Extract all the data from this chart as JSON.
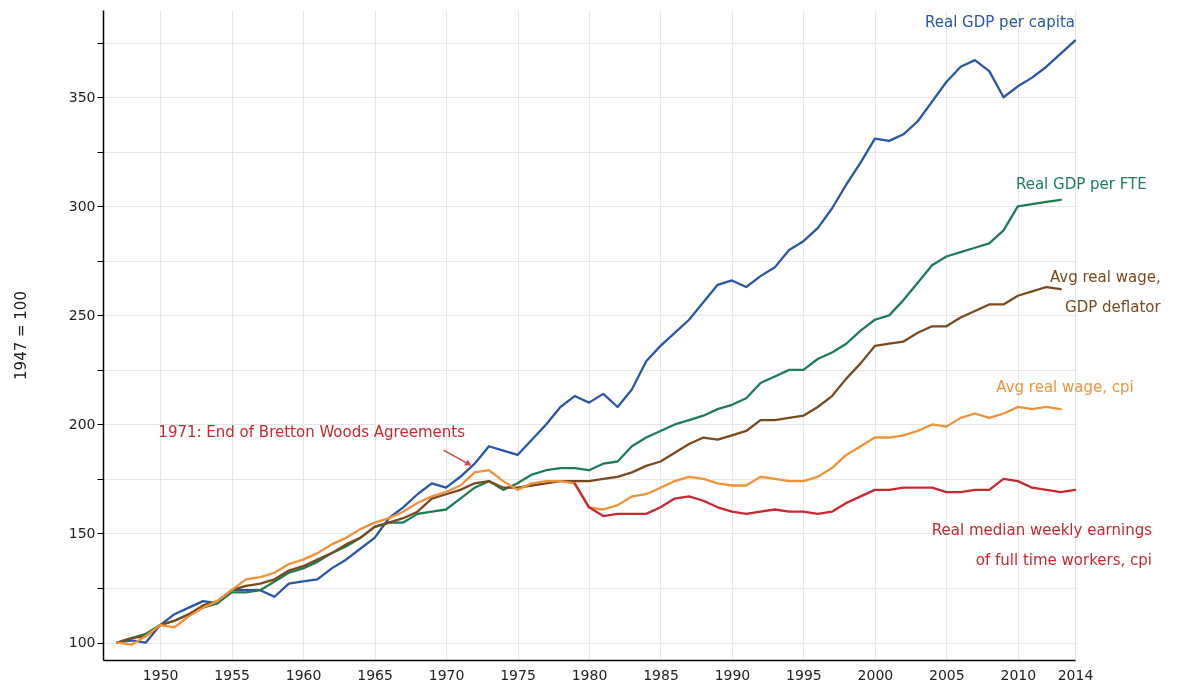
{
  "chart_data": {
    "type": "line",
    "ylabel": "1947 = 100",
    "xlim": [
      1946,
      2014
    ],
    "ylim": [
      92,
      390
    ],
    "xticks": [
      1950,
      1955,
      1960,
      1965,
      1970,
      1975,
      1980,
      1985,
      1990,
      1995,
      2000,
      2005,
      2010,
      2014
    ],
    "yticks": [
      100,
      {
        "value": 125,
        "label": null
      },
      150,
      {
        "value": 175,
        "label": null
      },
      200,
      {
        "value": 225,
        "label": null
      },
      250,
      {
        "value": 275,
        "label": null
      },
      300,
      {
        "value": 325,
        "label": null
      },
      350,
      {
        "value": 375,
        "label": null
      }
    ],
    "grid": true,
    "annotations": [
      {
        "text": "1971: End of Bretton Woods Agreements",
        "x": 1972,
        "y": 180
      }
    ],
    "series": [
      {
        "name": "Real GDP per capita",
        "color": "#2a56a6",
        "x": [
          1947,
          1948,
          1949,
          1950,
          1951,
          1952,
          1953,
          1954,
          1955,
          1956,
          1957,
          1958,
          1959,
          1960,
          1961,
          1962,
          1963,
          1964,
          1965,
          1966,
          1967,
          1968,
          1969,
          1970,
          1971,
          1972,
          1973,
          1974,
          1975,
          1976,
          1977,
          1978,
          1979,
          1980,
          1981,
          1982,
          1983,
          1984,
          1985,
          1986,
          1987,
          1988,
          1989,
          1990,
          1991,
          1992,
          1993,
          1994,
          1995,
          1996,
          1997,
          1998,
          1999,
          2000,
          2001,
          2002,
          2003,
          2004,
          2005,
          2006,
          2007,
          2008,
          2009,
          2010,
          2011,
          2012,
          2013,
          2014
        ],
        "values": [
          100,
          101,
          100,
          108,
          113,
          116,
          119,
          118,
          124,
          124,
          124,
          121,
          127,
          128,
          129,
          134,
          138,
          143,
          148,
          157,
          162,
          168,
          173,
          171,
          176,
          182,
          190,
          188,
          186,
          193,
          200,
          208,
          213,
          210,
          214,
          208,
          216,
          229,
          236,
          242,
          248,
          256,
          264,
          266,
          263,
          268,
          272,
          280,
          284,
          290,
          299,
          310,
          320,
          331,
          330,
          333,
          339,
          348,
          357,
          364,
          367,
          362,
          350,
          355,
          359,
          364,
          370,
          376
        ]
      },
      {
        "name": "Real GDP per FTE",
        "color": "#1e7d55",
        "x": [
          1947,
          1948,
          1949,
          1950,
          1951,
          1952,
          1953,
          1954,
          1955,
          1956,
          1957,
          1958,
          1959,
          1960,
          1961,
          1962,
          1963,
          1964,
          1965,
          1966,
          1967,
          1968,
          1969,
          1970,
          1971,
          1972,
          1973,
          1974,
          1975,
          1976,
          1977,
          1978,
          1979,
          1980,
          1981,
          1982,
          1983,
          1984,
          1985,
          1986,
          1987,
          1988,
          1989,
          1990,
          1991,
          1992,
          1993,
          1994,
          1995,
          1996,
          1997,
          1998,
          1999,
          2000,
          2001,
          2002,
          2003,
          2004,
          2005,
          2006,
          2007,
          2008,
          2009,
          2010,
          2011,
          2012,
          2013
        ],
        "values": [
          100,
          102,
          104,
          108,
          110,
          113,
          116,
          118,
          123,
          123,
          124,
          128,
          132,
          134,
          137,
          141,
          144,
          148,
          153,
          155,
          155,
          159,
          160,
          161,
          166,
          171,
          174,
          170,
          173,
          177,
          179,
          180,
          180,
          179,
          182,
          183,
          190,
          194,
          197,
          200,
          202,
          204,
          207,
          209,
          212,
          219,
          222,
          225,
          225,
          230,
          233,
          237,
          243,
          248,
          250,
          257,
          265,
          273,
          277,
          279,
          281,
          283,
          289,
          300,
          301,
          302,
          303
        ]
      },
      {
        "name": "Avg real wage,\nGDP deflator",
        "color": "#7a4a1f",
        "x": [
          1947,
          1948,
          1949,
          1950,
          1951,
          1952,
          1953,
          1954,
          1955,
          1956,
          1957,
          1958,
          1959,
          1960,
          1961,
          1962,
          1963,
          1964,
          1965,
          1966,
          1967,
          1968,
          1969,
          1970,
          1971,
          1972,
          1973,
          1974,
          1975,
          1976,
          1977,
          1978,
          1979,
          1980,
          1981,
          1982,
          1983,
          1984,
          1985,
          1986,
          1987,
          1988,
          1989,
          1990,
          1991,
          1992,
          1993,
          1994,
          1995,
          1996,
          1997,
          1998,
          1999,
          2000,
          2001,
          2002,
          2003,
          2004,
          2005,
          2006,
          2007,
          2008,
          2009,
          2010,
          2011,
          2012,
          2013
        ],
        "values": [
          100,
          102,
          103,
          108,
          110,
          113,
          117,
          119,
          124,
          126,
          127,
          129,
          133,
          135,
          138,
          141,
          145,
          148,
          153,
          155,
          157,
          160,
          166,
          168,
          170,
          173,
          174,
          171,
          171,
          172,
          173,
          174,
          174,
          174,
          175,
          176,
          178,
          181,
          183,
          187,
          191,
          194,
          193,
          195,
          197,
          202,
          202,
          203,
          204,
          208,
          213,
          221,
          228,
          236,
          237,
          238,
          242,
          245,
          245,
          249,
          252,
          255,
          255,
          259,
          261,
          263,
          262
        ]
      },
      {
        "name": "Avg real wage, cpi",
        "color": "#f0923a",
        "x": [
          1947,
          1948,
          1949,
          1950,
          1951,
          1952,
          1953,
          1954,
          1955,
          1956,
          1957,
          1958,
          1959,
          1960,
          1961,
          1962,
          1963,
          1964,
          1965,
          1966,
          1967,
          1968,
          1969,
          1970,
          1971,
          1972,
          1973,
          1974,
          1975,
          1976,
          1977,
          1978,
          1979,
          1980,
          1981,
          1982,
          1983,
          1984,
          1985,
          1986,
          1987,
          1988,
          1989,
          1990,
          1991,
          1992,
          1993,
          1994,
          1995,
          1996,
          1997,
          1998,
          1999,
          2000,
          2001,
          2002,
          2003,
          2004,
          2005,
          2006,
          2007,
          2008,
          2009,
          2010,
          2011,
          2012,
          2013
        ],
        "values": [
          100,
          99,
          103,
          108,
          107,
          112,
          116,
          119,
          124,
          129,
          130,
          132,
          136,
          138,
          141,
          145,
          148,
          152,
          155,
          157,
          160,
          164,
          167,
          169,
          172,
          178,
          179,
          174,
          170,
          173,
          174,
          174,
          173,
          162,
          161,
          163,
          167,
          168,
          171,
          174,
          176,
          175,
          173,
          172,
          172,
          176,
          175,
          174,
          174,
          176,
          180,
          186,
          190,
          194,
          194,
          195,
          197,
          200,
          199,
          203,
          205,
          203,
          205,
          208,
          207,
          208,
          207
        ]
      },
      {
        "name": "Real median weekly earnings\nof full time workers, cpi",
        "color": "#c8282f",
        "x": [
          1979,
          1980,
          1981,
          1982,
          1983,
          1984,
          1985,
          1986,
          1987,
          1988,
          1989,
          1990,
          1991,
          1992,
          1993,
          1994,
          1995,
          1996,
          1997,
          1998,
          1999,
          2000,
          2001,
          2002,
          2003,
          2004,
          2005,
          2006,
          2007,
          2008,
          2009,
          2010,
          2011,
          2012,
          2013,
          2014
        ],
        "values": [
          173,
          162,
          158,
          159,
          159,
          159,
          162,
          166,
          167,
          165,
          162,
          160,
          159,
          160,
          161,
          160,
          160,
          159,
          160,
          164,
          167,
          170,
          170,
          171,
          171,
          171,
          169,
          169,
          170,
          170,
          175,
          174,
          171,
          170,
          169,
          170
        ]
      }
    ]
  }
}
